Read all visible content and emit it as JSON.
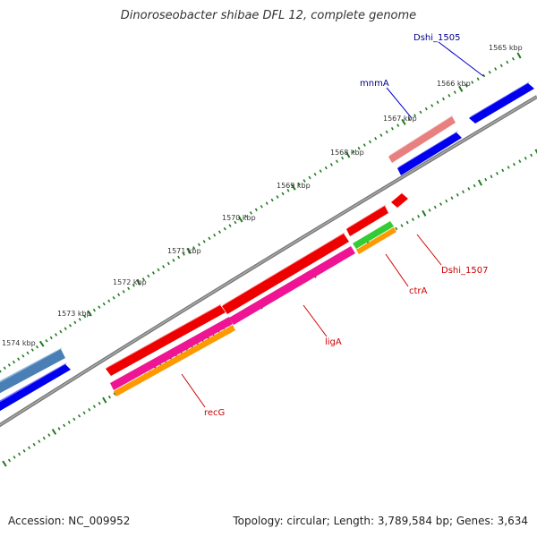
{
  "title": "Dinoroseobacter shibae DFL 12, complete genome",
  "footer": {
    "accession": "Accession: NC_009952",
    "summary": "Topology: circular; Length: 3,789,584 bp; Genes: 3,634"
  },
  "scale_labels": [
    "1565 kbp",
    "1566 kbp",
    "1567 kbp",
    "1568 kbp",
    "1569 kbp",
    "1570 kbp",
    "1571 kbp",
    "1572 kbp",
    "1573 kbp",
    "1574 kbp"
  ],
  "gene_labels": {
    "Dshi_1505": "Dshi_1505",
    "mnmA": "mnmA",
    "Dshi_1507": "Dshi_1507",
    "ctrA": "ctrA",
    "ligA": "ligA",
    "recG": "recG"
  },
  "colors": {
    "backbone": "#8a8a8a",
    "tick": "#1f7a1f",
    "forward_gene": "#0000ee",
    "reverse_gene": "#ee0000",
    "forward_label": "#00008b",
    "reverse_label": "#cc0000",
    "pink": "#ee1493",
    "orange": "#ff9900",
    "green": "#33cc33",
    "salmon": "#e88080",
    "steel": "#4a7fb5"
  }
}
